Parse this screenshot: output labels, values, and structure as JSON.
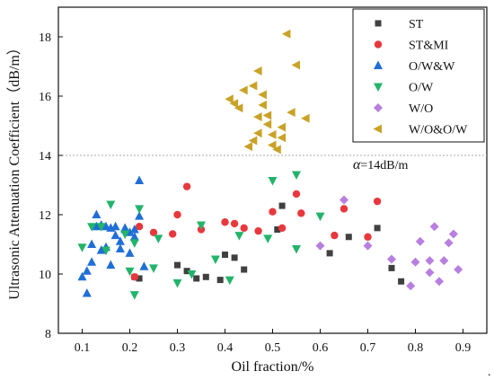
{
  "chart_data": {
    "type": "scatter",
    "xlabel": "Oil fraction/%",
    "ylabel": "Ultrasonic Attenuation Coefficient（dB/m）",
    "xlim": [
      0.05,
      0.95
    ],
    "ylim": [
      8,
      19
    ],
    "xticks": [
      "0.1",
      "0.2",
      "0.3",
      "0.4",
      "0.5",
      "0.6",
      "0.7",
      "0.8",
      "0.9"
    ],
    "yticks": [
      "8",
      "10",
      "12",
      "14",
      "16",
      "18"
    ],
    "reference_line": {
      "y": 14,
      "style": "dotted",
      "color": "#aaaaaa"
    },
    "annotation": {
      "symbol": "α",
      "text": "=14dB/m"
    },
    "trailing_mark": ".",
    "legend_position": "top-right",
    "series": [
      {
        "name": "ST",
        "marker": "square",
        "color": "#404040",
        "points": [
          [
            0.21,
            9.9
          ],
          [
            0.22,
            9.85
          ],
          [
            0.3,
            10.3
          ],
          [
            0.32,
            10.1
          ],
          [
            0.34,
            9.85
          ],
          [
            0.36,
            9.9
          ],
          [
            0.39,
            9.8
          ],
          [
            0.4,
            10.65
          ],
          [
            0.42,
            10.55
          ],
          [
            0.44,
            10.15
          ],
          [
            0.51,
            11.5
          ],
          [
            0.52,
            12.3
          ],
          [
            0.62,
            10.7
          ],
          [
            0.66,
            11.25
          ],
          [
            0.72,
            11.55
          ],
          [
            0.75,
            10.2
          ],
          [
            0.77,
            9.75
          ]
        ]
      },
      {
        "name": "ST&MI",
        "marker": "circle",
        "color": "#e8383d",
        "points": [
          [
            0.21,
            9.9
          ],
          [
            0.22,
            11.6
          ],
          [
            0.25,
            11.4
          ],
          [
            0.29,
            11.35
          ],
          [
            0.3,
            12.0
          ],
          [
            0.32,
            12.95
          ],
          [
            0.35,
            11.5
          ],
          [
            0.4,
            11.75
          ],
          [
            0.42,
            11.7
          ],
          [
            0.44,
            11.55
          ],
          [
            0.47,
            11.45
          ],
          [
            0.5,
            12.1
          ],
          [
            0.52,
            11.55
          ],
          [
            0.55,
            12.7
          ],
          [
            0.56,
            12.05
          ],
          [
            0.63,
            11.3
          ],
          [
            0.65,
            12.2
          ],
          [
            0.7,
            11.25
          ],
          [
            0.72,
            12.45
          ]
        ]
      },
      {
        "name": "O/W&W",
        "marker": "triangle-up",
        "color": "#1f6fd6",
        "points": [
          [
            0.1,
            9.9
          ],
          [
            0.11,
            9.35
          ],
          [
            0.11,
            10.1
          ],
          [
            0.12,
            10.4
          ],
          [
            0.12,
            11.0
          ],
          [
            0.13,
            12.0
          ],
          [
            0.13,
            11.6
          ],
          [
            0.14,
            10.8
          ],
          [
            0.14,
            11.65
          ],
          [
            0.15,
            11.6
          ],
          [
            0.15,
            10.9
          ],
          [
            0.16,
            11.55
          ],
          [
            0.16,
            10.3
          ],
          [
            0.17,
            11.3
          ],
          [
            0.17,
            11.6
          ],
          [
            0.18,
            11.1
          ],
          [
            0.18,
            10.85
          ],
          [
            0.19,
            11.5
          ],
          [
            0.19,
            11.55
          ],
          [
            0.2,
            10.7
          ],
          [
            0.2,
            11.4
          ],
          [
            0.21,
            11.5
          ],
          [
            0.21,
            11.25
          ],
          [
            0.22,
            11.95
          ],
          [
            0.22,
            13.15
          ],
          [
            0.23,
            10.25
          ]
        ]
      },
      {
        "name": "O/W",
        "marker": "triangle-down",
        "color": "#22b46a",
        "points": [
          [
            0.1,
            10.9
          ],
          [
            0.12,
            11.6
          ],
          [
            0.14,
            11.6
          ],
          [
            0.15,
            10.8
          ],
          [
            0.16,
            12.35
          ],
          [
            0.19,
            11.35
          ],
          [
            0.2,
            10.1
          ],
          [
            0.21,
            9.3
          ],
          [
            0.21,
            11.05
          ],
          [
            0.22,
            12.2
          ],
          [
            0.25,
            10.2
          ],
          [
            0.26,
            11.2
          ],
          [
            0.3,
            9.7
          ],
          [
            0.33,
            10.0
          ],
          [
            0.35,
            11.65
          ],
          [
            0.38,
            10.5
          ],
          [
            0.41,
            9.8
          ],
          [
            0.43,
            11.3
          ],
          [
            0.49,
            11.2
          ],
          [
            0.5,
            13.15
          ],
          [
            0.55,
            10.85
          ],
          [
            0.55,
            13.35
          ],
          [
            0.6,
            11.95
          ]
        ]
      },
      {
        "name": "W/O",
        "marker": "diamond",
        "color": "#b87ee0",
        "points": [
          [
            0.6,
            10.95
          ],
          [
            0.65,
            12.5
          ],
          [
            0.7,
            10.95
          ],
          [
            0.75,
            10.5
          ],
          [
            0.79,
            9.6
          ],
          [
            0.8,
            10.4
          ],
          [
            0.81,
            11.1
          ],
          [
            0.83,
            10.05
          ],
          [
            0.83,
            10.45
          ],
          [
            0.84,
            11.6
          ],
          [
            0.85,
            9.75
          ],
          [
            0.86,
            10.45
          ],
          [
            0.87,
            11.05
          ],
          [
            0.88,
            11.35
          ],
          [
            0.89,
            10.15
          ]
        ]
      },
      {
        "name": "W/O&O/W",
        "marker": "triangle-left",
        "color": "#c9a227",
        "points": [
          [
            0.41,
            15.9
          ],
          [
            0.42,
            15.75
          ],
          [
            0.43,
            15.6
          ],
          [
            0.44,
            16.2
          ],
          [
            0.45,
            14.3
          ],
          [
            0.46,
            14.5
          ],
          [
            0.46,
            16.35
          ],
          [
            0.47,
            14.75
          ],
          [
            0.47,
            15.3
          ],
          [
            0.47,
            16.85
          ],
          [
            0.48,
            15.7
          ],
          [
            0.48,
            16.05
          ],
          [
            0.49,
            15.05
          ],
          [
            0.49,
            15.35
          ],
          [
            0.5,
            14.35
          ],
          [
            0.5,
            14.7
          ],
          [
            0.51,
            14.2
          ],
          [
            0.52,
            14.6
          ],
          [
            0.52,
            14.95
          ],
          [
            0.53,
            18.1
          ],
          [
            0.54,
            15.45
          ],
          [
            0.55,
            17.05
          ],
          [
            0.57,
            15.25
          ]
        ]
      }
    ]
  }
}
